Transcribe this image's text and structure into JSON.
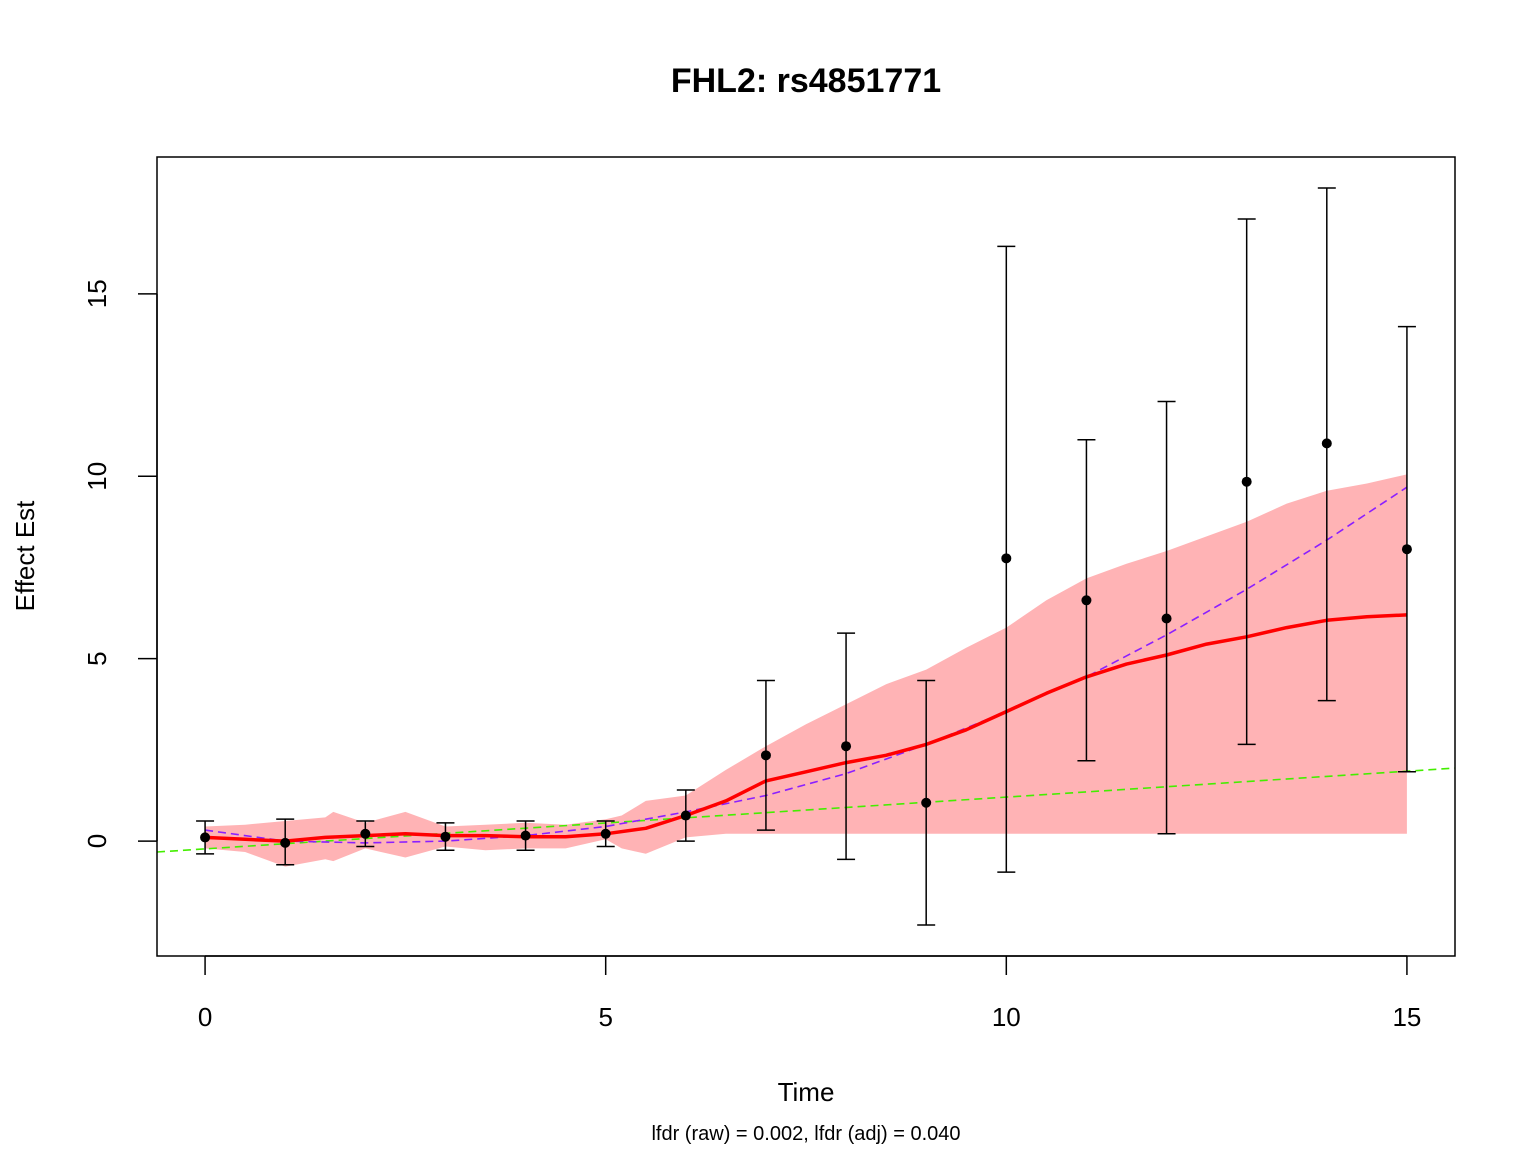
{
  "chart_data": {
    "type": "line",
    "title": "FHL2: rs4851771",
    "xlabel": "Time",
    "ylabel": "Effect Est",
    "subtitle": "lfdr (raw) = 0.002, lfdr (adj) = 0.040",
    "xlim": [
      -0.6,
      15.6
    ],
    "ylim": [
      -3.15,
      18.75
    ],
    "xticks": [
      0,
      5,
      10,
      15
    ],
    "yticks": [
      0,
      5,
      10,
      15
    ],
    "grid": false,
    "colors": {
      "band": "#ffb3b5",
      "smooth": "#ff0000",
      "quadratic": "#8b1fff",
      "linear": "#44ee00",
      "points": "#000000"
    },
    "points": {
      "name": "effect estimates",
      "x": [
        0,
        1,
        2,
        3,
        4,
        5,
        6,
        7,
        8,
        9,
        10,
        11,
        12,
        13,
        14,
        15
      ],
      "y": [
        0.1,
        -0.05,
        0.2,
        0.12,
        0.15,
        0.2,
        0.7,
        2.35,
        2.6,
        1.05,
        7.75,
        6.6,
        6.1,
        9.85,
        10.9,
        8.0
      ],
      "lower": [
        -0.35,
        -0.65,
        -0.15,
        -0.25,
        -0.25,
        -0.15,
        0.0,
        0.3,
        -0.5,
        -2.3,
        -0.85,
        2.2,
        0.2,
        2.65,
        3.85,
        1.9
      ],
      "upper": [
        0.55,
        0.6,
        0.55,
        0.5,
        0.55,
        0.55,
        1.4,
        4.4,
        5.7,
        4.4,
        16.3,
        11.0,
        12.05,
        17.05,
        17.9,
        14.1
      ]
    },
    "band": {
      "name": "confidence band",
      "x": [
        0,
        0.5,
        1,
        1.5,
        1.6,
        2,
        2.5,
        3,
        3.5,
        4,
        4.5,
        5,
        5.2,
        5.5,
        6,
        6.5,
        7,
        7.5,
        8,
        8.5,
        9,
        9.5,
        10,
        10.5,
        11,
        11.5,
        12,
        12.5,
        13,
        13.5,
        14,
        14.5,
        15
      ],
      "lower": [
        -0.2,
        -0.3,
        -0.7,
        -0.5,
        -0.55,
        -0.2,
        -0.45,
        -0.15,
        -0.25,
        -0.2,
        -0.2,
        0.05,
        -0.2,
        -0.35,
        0.1,
        0.2,
        0.2,
        0.2,
        0.2,
        0.2,
        0.2,
        0.2,
        0.2,
        0.2,
        0.2,
        0.2,
        0.2,
        0.2,
        0.2,
        0.2,
        0.2,
        0.2,
        0.2
      ],
      "upper": [
        0.4,
        0.45,
        0.55,
        0.65,
        0.8,
        0.5,
        0.8,
        0.4,
        0.45,
        0.5,
        0.45,
        0.6,
        0.7,
        1.1,
        1.25,
        1.95,
        2.6,
        3.2,
        3.75,
        4.3,
        4.7,
        5.3,
        5.85,
        6.6,
        7.2,
        7.6,
        7.95,
        8.35,
        8.75,
        9.25,
        9.6,
        9.8,
        10.05
      ]
    },
    "series": [
      {
        "name": "smooth fit",
        "style": "solid",
        "x": [
          0,
          0.5,
          1,
          1.5,
          2,
          2.5,
          3,
          3.5,
          4,
          4.5,
          5,
          5.5,
          6,
          6.5,
          7,
          7.5,
          8,
          8.5,
          9,
          9.5,
          10,
          10.5,
          11,
          11.5,
          12,
          12.5,
          13,
          13.5,
          14,
          14.5,
          15
        ],
        "y": [
          0.1,
          0.05,
          0.0,
          0.1,
          0.15,
          0.2,
          0.15,
          0.15,
          0.12,
          0.12,
          0.2,
          0.35,
          0.7,
          1.1,
          1.65,
          1.9,
          2.15,
          2.35,
          2.65,
          3.05,
          3.55,
          4.05,
          4.5,
          4.85,
          5.1,
          5.4,
          5.6,
          5.85,
          6.05,
          6.15,
          6.2
        ]
      },
      {
        "name": "quadratic fit",
        "style": "dashed",
        "x": [
          0,
          1,
          2,
          3,
          4,
          5,
          6,
          7,
          8,
          9,
          10,
          11,
          12,
          13,
          14,
          15
        ],
        "y": [
          0.3,
          0.0,
          -0.05,
          0.0,
          0.15,
          0.4,
          0.8,
          1.25,
          1.85,
          2.65,
          3.55,
          4.5,
          5.65,
          6.9,
          8.25,
          9.7
        ]
      },
      {
        "name": "linear fit",
        "style": "dashed",
        "x": [
          -0.6,
          15.6
        ],
        "y": [
          -0.3,
          2.0
        ]
      }
    ]
  }
}
